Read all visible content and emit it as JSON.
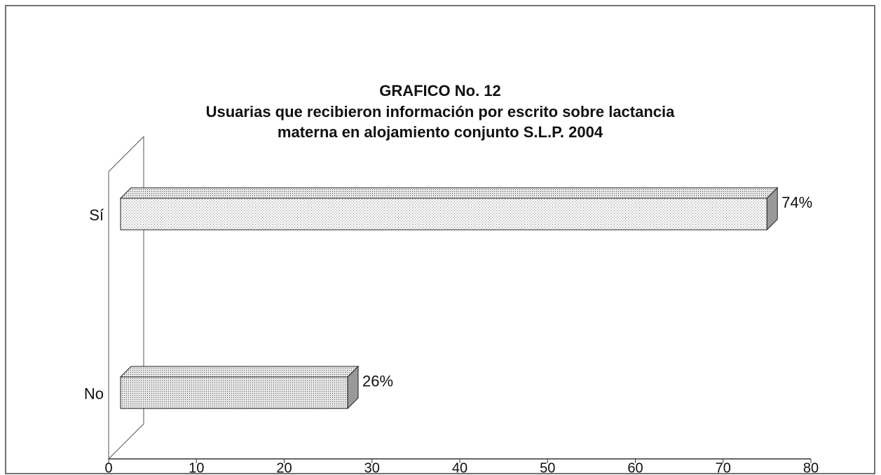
{
  "chart_data": {
    "type": "bar",
    "orientation": "horizontal",
    "title": "GRAFICO No. 12",
    "subtitle": [
      "Usuarias que recibieron información por escrito sobre lactancia",
      "materna  en alojamiento conjunto S.L.P. 2004"
    ],
    "categories": [
      "Sí",
      "No"
    ],
    "values": [
      74,
      26
    ],
    "value_labels": [
      "74%",
      "26%"
    ],
    "color": "#ececec",
    "xlim": [
      0,
      80
    ],
    "xticks": [
      0,
      10,
      20,
      30,
      40,
      50,
      60,
      70,
      80
    ],
    "grid": false
  }
}
